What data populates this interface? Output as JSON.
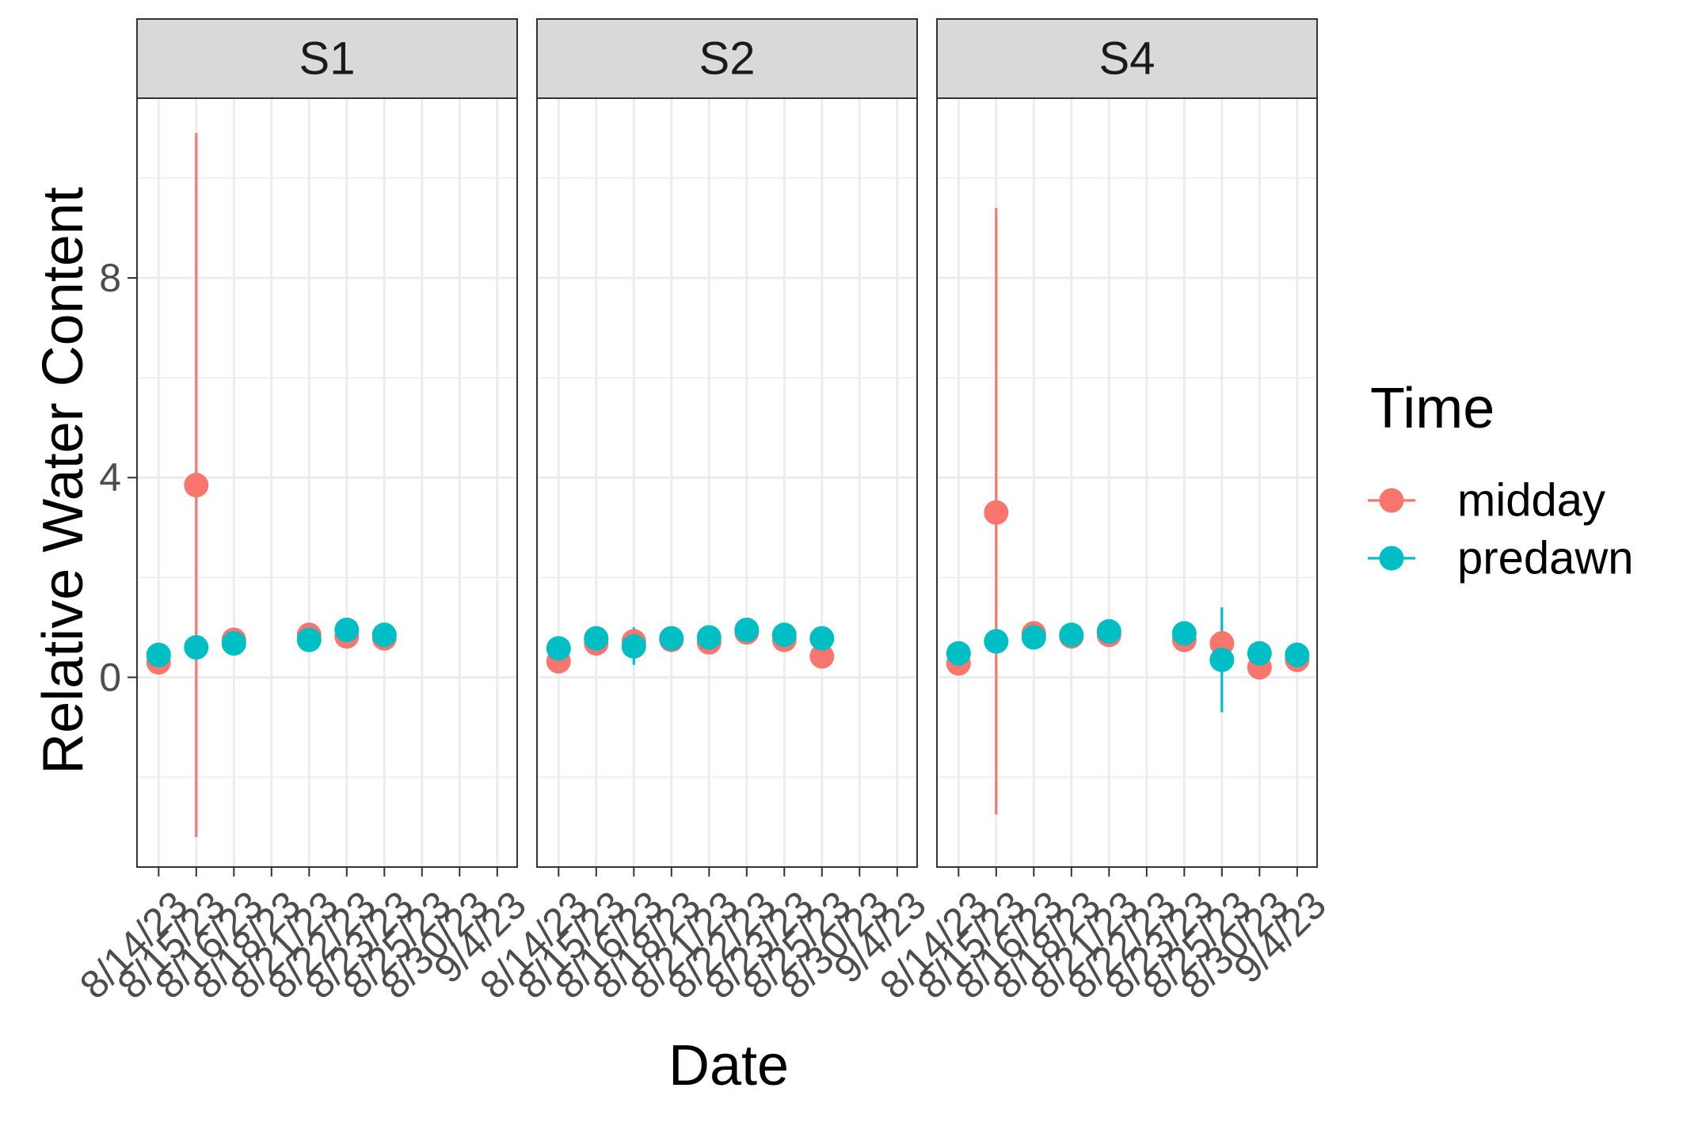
{
  "chart_data": {
    "type": "scatter",
    "subtype": "faceted point plot with error bars",
    "ylabel": "Relative Water Content",
    "xlabel": "Date",
    "categories": [
      "8/14/23",
      "8/15/23",
      "8/16/23",
      "8/18/23",
      "8/21/23",
      "8/22/23",
      "8/23/23",
      "8/25/23",
      "8/30/23",
      "9/4/23"
    ],
    "ylim": [
      -3.8,
      11.6
    ],
    "yticks": [
      0,
      4,
      8
    ],
    "y_minor_gridlines": [
      -2,
      2,
      6,
      10
    ],
    "grid": true,
    "legend": {
      "title": "Time",
      "placement": "right",
      "entries": [
        {
          "name": "midday",
          "color": "#F8766D"
        },
        {
          "name": "predawn",
          "color": "#00BFC4"
        }
      ]
    },
    "colors": {
      "midday": "#F8766D",
      "predawn": "#00BFC4",
      "strip_bg": "#D9D9D9",
      "grid": "#EBEBEB",
      "border": "#333333",
      "tick_text": "#4D4D4D",
      "title_text": "#000000"
    },
    "facets": [
      {
        "name": "S1",
        "series": [
          {
            "name": "midday",
            "values": [
              0.3,
              3.85,
              0.75,
              null,
              0.85,
              0.82,
              0.78,
              null,
              null,
              null
            ],
            "err_low": [
              null,
              -3.2,
              null,
              null,
              null,
              null,
              null,
              null,
              null,
              null
            ],
            "err_high": [
              null,
              10.9,
              null,
              null,
              null,
              null,
              null,
              null,
              null,
              null
            ]
          },
          {
            "name": "predawn",
            "values": [
              0.45,
              0.6,
              0.68,
              null,
              0.75,
              0.95,
              0.85,
              null,
              null,
              null
            ],
            "err_low": [
              null,
              null,
              null,
              null,
              null,
              null,
              null,
              null,
              null,
              null
            ],
            "err_high": [
              null,
              null,
              null,
              null,
              null,
              null,
              null,
              null,
              null,
              null
            ]
          }
        ]
      },
      {
        "name": "S2",
        "series": [
          {
            "name": "midday",
            "values": [
              0.32,
              0.68,
              0.72,
              0.75,
              0.7,
              0.9,
              0.75,
              0.42,
              null,
              null
            ],
            "err_low": [
              null,
              null,
              null,
              null,
              null,
              null,
              null,
              null,
              null,
              null
            ],
            "err_high": [
              null,
              null,
              null,
              null,
              null,
              null,
              null,
              null,
              null,
              null
            ]
          },
          {
            "name": "predawn",
            "values": [
              0.58,
              0.78,
              0.62,
              0.78,
              0.8,
              0.95,
              0.85,
              0.78,
              null,
              null
            ],
            "err_low": [
              null,
              null,
              0.25,
              null,
              null,
              null,
              null,
              null,
              null,
              null
            ],
            "err_high": [
              null,
              null,
              1.0,
              null,
              null,
              null,
              null,
              null,
              null,
              null
            ]
          }
        ]
      },
      {
        "name": "S4",
        "series": [
          {
            "name": "midday",
            "values": [
              0.28,
              3.3,
              0.88,
              0.82,
              0.85,
              null,
              0.75,
              0.68,
              0.2,
              0.35
            ],
            "err_low": [
              null,
              -2.75,
              null,
              null,
              null,
              null,
              null,
              null,
              null,
              null
            ],
            "err_high": [
              null,
              9.4,
              null,
              null,
              null,
              null,
              null,
              null,
              null,
              null
            ]
          },
          {
            "name": "predawn",
            "values": [
              0.48,
              0.72,
              0.8,
              0.85,
              0.92,
              null,
              0.88,
              0.35,
              0.48,
              0.45
            ],
            "err_low": [
              null,
              null,
              null,
              null,
              null,
              null,
              null,
              -0.7,
              null,
              null
            ],
            "err_high": [
              null,
              null,
              null,
              null,
              null,
              null,
              null,
              1.4,
              null,
              null
            ]
          }
        ]
      }
    ]
  }
}
